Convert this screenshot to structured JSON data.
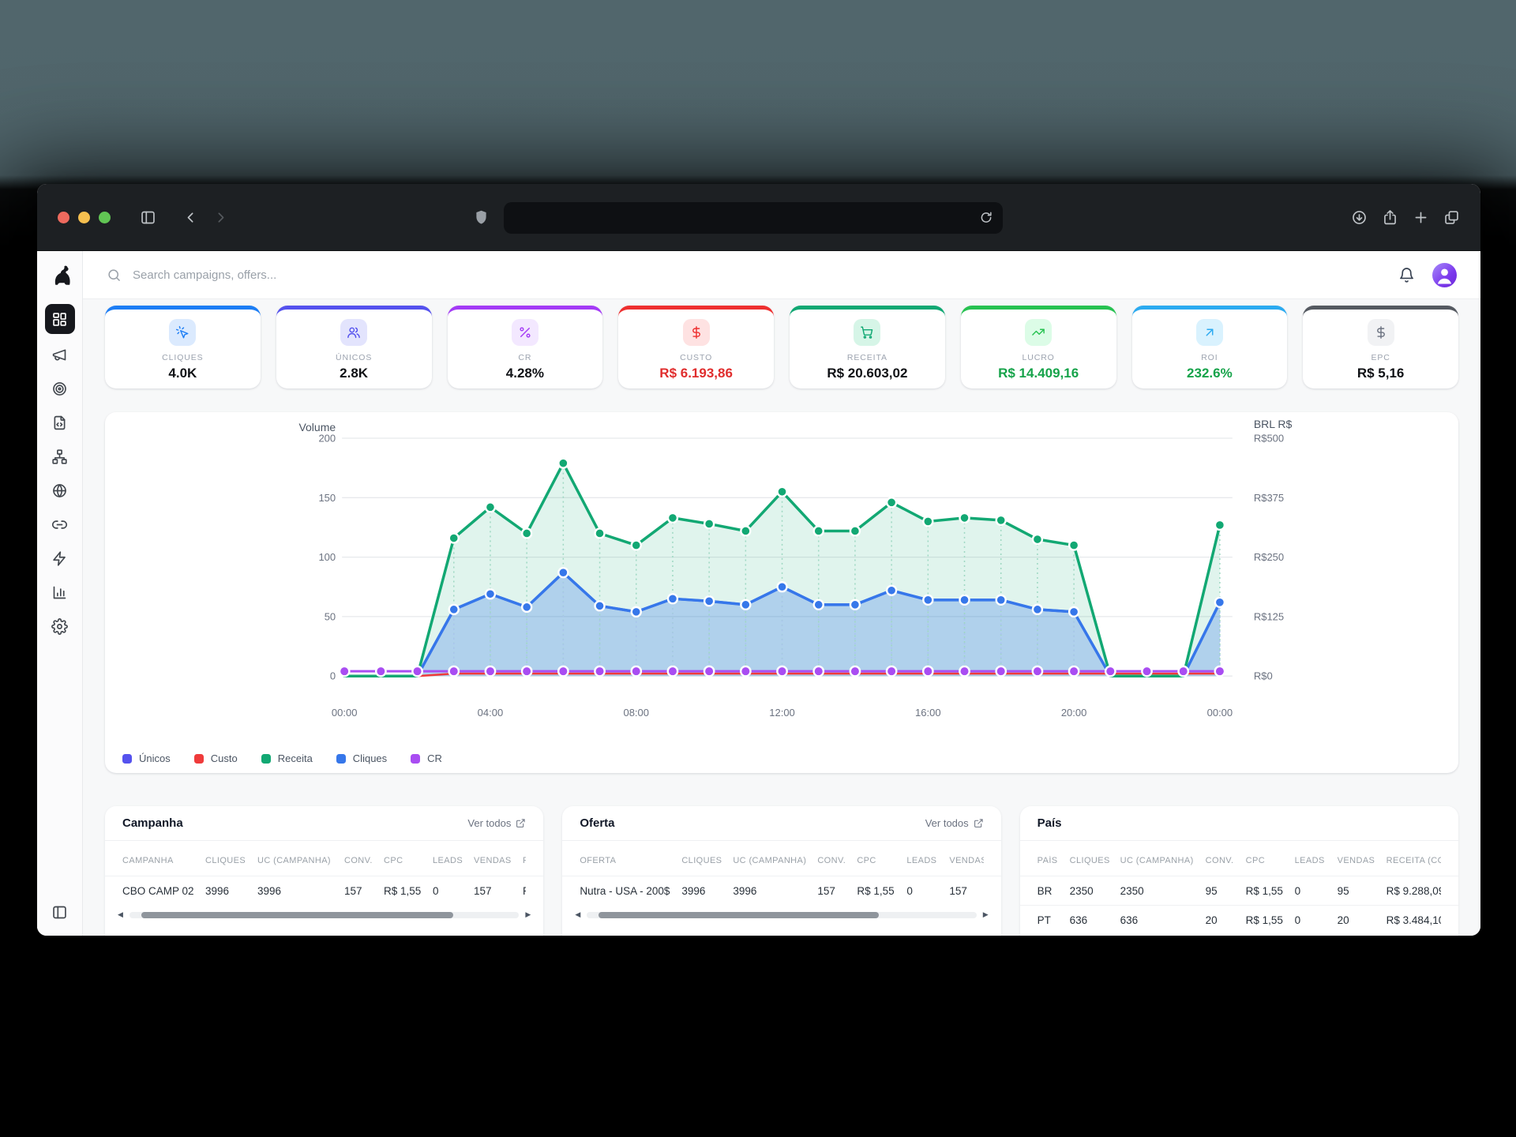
{
  "browser": {
    "traffic_lights": {
      "close": "#ed6a5e",
      "minimize": "#f5bf4f",
      "zoom": "#61c554"
    },
    "toolbar_icons": [
      "sidebar-toggle",
      "back",
      "forward",
      "shield",
      "reload",
      "downloads",
      "share",
      "new-tab",
      "tab-overview"
    ],
    "url_value": ""
  },
  "header": {
    "search_placeholder": "Search campaigns, offers...",
    "logo": "dog-logo"
  },
  "sidebar": {
    "items": [
      {
        "name": "dashboard",
        "icon": "dashboard-icon",
        "active": true
      },
      {
        "name": "campaigns",
        "icon": "megaphone-icon",
        "active": false
      },
      {
        "name": "offers",
        "icon": "target-icon",
        "active": false
      },
      {
        "name": "landers",
        "icon": "file-code-icon",
        "active": false
      },
      {
        "name": "flows",
        "icon": "network-icon",
        "active": false
      },
      {
        "name": "domains",
        "icon": "globe-icon",
        "active": false
      },
      {
        "name": "links",
        "icon": "link-icon",
        "active": false
      },
      {
        "name": "automation",
        "icon": "zap-icon",
        "active": false
      },
      {
        "name": "reports",
        "icon": "bar-chart-icon",
        "active": false
      },
      {
        "name": "settings",
        "icon": "gear-icon",
        "active": false
      }
    ]
  },
  "kpis": [
    {
      "label": "CLIQUES",
      "value": "4.0K",
      "icon": "cursor-click-icon",
      "accent": "#1d7ef5",
      "tile_bg": "#dbeafe",
      "icon_color": "#1d7ef5",
      "value_color": "#0f1115"
    },
    {
      "label": "ÚNICOS",
      "value": "2.8K",
      "icon": "users-icon",
      "accent": "#5552ee",
      "tile_bg": "#e3e4fd",
      "icon_color": "#5552ee",
      "value_color": "#0f1115"
    },
    {
      "label": "CR",
      "value": "4.28%",
      "icon": "percent-icon",
      "accent": "#a43bf6",
      "tile_bg": "#f3e8ff",
      "icon_color": "#a43bf6",
      "value_color": "#0f1115"
    },
    {
      "label": "CUSTO",
      "value": "R$ 6.193,86",
      "icon": "dollar-icon",
      "accent": "#ee2f2f",
      "tile_bg": "#fee2e2",
      "icon_color": "#ee2f2f",
      "value_color": "#e02d2d"
    },
    {
      "label": "RECEITA",
      "value": "R$ 20.603,02",
      "icon": "cart-icon",
      "accent": "#10a873",
      "tile_bg": "#d6f5e7",
      "icon_color": "#10a873",
      "value_color": "#0f1115"
    },
    {
      "label": "LUCRO",
      "value": "R$ 14.409,16",
      "icon": "trending-up-icon",
      "accent": "#27c251",
      "tile_bg": "#dcfce7",
      "icon_color": "#27c251",
      "value_color": "#16a34a"
    },
    {
      "label": "ROI",
      "value": "232.6%",
      "icon": "arrow-up-right-icon",
      "accent": "#2baaf0",
      "tile_bg": "#d9f2fe",
      "icon_color": "#2baaf0",
      "value_color": "#16a34a"
    },
    {
      "label": "EPC",
      "value": "R$ 5,16",
      "icon": "dollar-icon",
      "accent": "#555a61",
      "tile_bg": "#f1f2f4",
      "icon_color": "#6b7280",
      "value_color": "#0f1115"
    }
  ],
  "chart_data": {
    "type": "line",
    "left_axis": {
      "title": "Volume",
      "tick_labels": [
        "0",
        "50",
        "100",
        "150",
        "200"
      ],
      "range": [
        0,
        200
      ],
      "grid": true
    },
    "right_axis": {
      "title": "BRL R$",
      "tick_labels": [
        "R$0",
        "R$125",
        "R$250",
        "R$375",
        "R$500"
      ],
      "range": [
        0,
        500
      ]
    },
    "x": {
      "n_points": 25,
      "tick_labels": [
        "00:00",
        "04:00",
        "08:00",
        "12:00",
        "16:00",
        "20:00",
        "00:00"
      ],
      "tick_indices": [
        0,
        4,
        8,
        12,
        16,
        20,
        24
      ]
    },
    "series": [
      {
        "name": "Únicos",
        "color": "#5552ee",
        "values": [
          0,
          0,
          0,
          56,
          69,
          58,
          87,
          59,
          54,
          65,
          63,
          60,
          75,
          60,
          60,
          72,
          64,
          64,
          64,
          56,
          54,
          0,
          0,
          0,
          62
        ],
        "dots": false
      },
      {
        "name": "Custo",
        "color": "#ef3b3b",
        "values": [
          0,
          0,
          0,
          2,
          2,
          2,
          2,
          2,
          2,
          2,
          2,
          2,
          2,
          2,
          2,
          2,
          2,
          2,
          2,
          2,
          2,
          2,
          2,
          2,
          2
        ],
        "dots": false
      },
      {
        "name": "Receita",
        "color": "#12a873",
        "values": [
          0,
          0,
          0,
          116,
          142,
          120,
          179,
          120,
          110,
          133,
          128,
          122,
          155,
          122,
          122,
          146,
          130,
          133,
          131,
          115,
          110,
          0,
          0,
          0,
          127
        ],
        "dots": true,
        "fill": "rgba(18,168,115,0.13)",
        "dropline": "#9ed8c2"
      },
      {
        "name": "Cliques",
        "color": "#3677ea",
        "values": [
          0,
          0,
          0,
          56,
          69,
          58,
          87,
          59,
          54,
          65,
          63,
          60,
          75,
          60,
          60,
          72,
          64,
          64,
          64,
          56,
          54,
          0,
          0,
          0,
          62
        ],
        "dots": true,
        "fill": "rgba(54,119,234,0.28)",
        "dropline": "#a9c3ee"
      },
      {
        "name": "CR",
        "color": "#a94df2",
        "values": [
          4,
          4,
          4,
          4,
          4,
          4,
          4,
          4,
          4,
          4,
          4,
          4,
          4,
          4,
          4,
          4,
          4,
          4,
          4,
          4,
          4,
          4,
          4,
          4,
          4
        ],
        "dots": true
      }
    ],
    "legend": [
      "Únicos",
      "Custo",
      "Receita",
      "Cliques",
      "CR"
    ]
  },
  "tables": [
    {
      "id": "campanha",
      "title": "Campanha",
      "link_label": "Ver todos",
      "columns": [
        "CAMPANHA",
        "CLIQUES",
        "UC (CAMPANHA)",
        "CONV.",
        "CPC",
        "LEADS",
        "VENDAS",
        "R"
      ],
      "rows": [
        [
          "CBO CAMP 02",
          "3996",
          "3996",
          "157",
          "R$ 1,55",
          "0",
          "157",
          "R"
        ]
      ],
      "scrollbar": true,
      "thumb_width": "80%"
    },
    {
      "id": "oferta",
      "title": "Oferta",
      "link_label": "Ver todos",
      "columns": [
        "OFERTA",
        "CLIQUES",
        "UC (CAMPANHA)",
        "CONV.",
        "CPC",
        "LEADS",
        "VENDAS"
      ],
      "rows": [
        [
          "Nutra - USA - 200$",
          "3996",
          "3996",
          "157",
          "R$ 1,55",
          "0",
          "157"
        ]
      ],
      "scrollbar": true,
      "thumb_width": "72%"
    },
    {
      "id": "pais",
      "title": "País",
      "link_label": null,
      "columns": [
        "PAÍS",
        "CLIQUES",
        "UC (CAMPANHA)",
        "CONV.",
        "CPC",
        "LEADS",
        "VENDAS",
        "RECEITA (CO"
      ],
      "rows": [
        [
          "BR",
          "2350",
          "2350",
          "95",
          "R$ 1,55",
          "0",
          "95",
          "R$ 9.288,09"
        ],
        [
          "PT",
          "636",
          "636",
          "20",
          "R$ 1,55",
          "0",
          "20",
          "R$ 3.484,10"
        ]
      ],
      "scrollbar": false
    }
  ]
}
